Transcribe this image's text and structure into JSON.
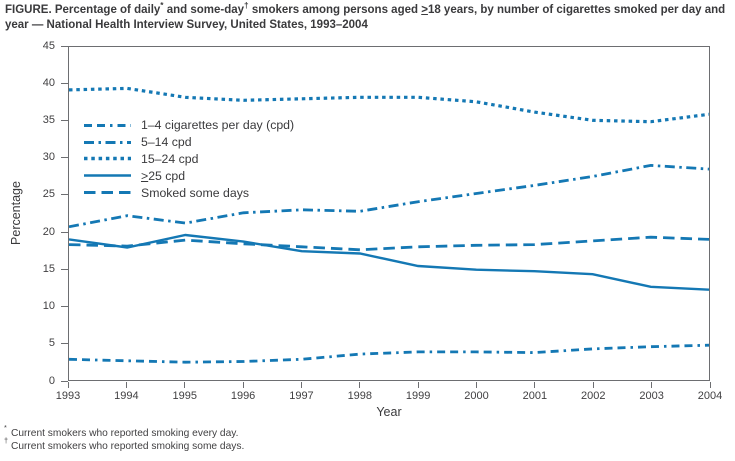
{
  "figure": {
    "title": {
      "part1": "FIGURE. Percentage of daily",
      "sup1": "*",
      "part2": " and some-day",
      "sup2": "†",
      "part3": " smokers among persons aged ",
      "geq": ">",
      "part4": "18 years, by number of cigarettes smoked per day and year — National Health Interview Survey, United States, 1993–2004"
    },
    "footnotes": [
      {
        "marker": "*",
        "text": "Current smokers who reported smoking every day."
      },
      {
        "marker": "†",
        "text": "Current smokers who reported smoking some days."
      }
    ]
  },
  "colors": {
    "line": "#1478b4",
    "axis": "#6d6e71",
    "text": "#3a3a3c"
  },
  "chart_data": {
    "type": "line",
    "title": "Percentage of daily and some-day smokers among persons aged ≥18 years, by number of cigarettes smoked per day and year, 1993–2004",
    "xlabel": "Year",
    "ylabel": "Percentage",
    "x": [
      1993,
      1994,
      1995,
      1996,
      1997,
      1998,
      1999,
      2000,
      2001,
      2002,
      2003,
      2004
    ],
    "ylim": [
      0,
      45
    ],
    "y_ticks": [
      0,
      5,
      10,
      15,
      20,
      25,
      30,
      35,
      40,
      45
    ],
    "grid": false,
    "legend_position": "upper-left inside plot",
    "series": [
      {
        "name": "1–4 cigarettes per day (cpd)",
        "style": "dash-dash-dot",
        "dash": "8 5 8 5 2.5 5",
        "width": 2.8,
        "values": [
          2.8,
          2.6,
          2.4,
          2.5,
          2.8,
          3.5,
          3.8,
          3.8,
          3.7,
          4.2,
          4.5,
          4.7
        ]
      },
      {
        "name": "5–14 cpd",
        "style": "dash-dot",
        "dash": "10 4.5 2.5 4.5",
        "width": 2.8,
        "values": [
          20.7,
          22.2,
          21.2,
          22.6,
          23.0,
          22.8,
          24.1,
          25.2,
          26.3,
          27.5,
          29.0,
          28.5
        ]
      },
      {
        "name": "15–24 cpd",
        "style": "dotted",
        "dash": "3.5 3.8",
        "width": 3.2,
        "values": [
          39.2,
          39.4,
          38.2,
          37.8,
          38.0,
          38.2,
          38.2,
          37.6,
          36.2,
          35.1,
          34.9,
          35.9
        ]
      },
      {
        "name": "≥25 cpd",
        "style": "solid",
        "dash": "",
        "width": 2.4,
        "values": [
          19.0,
          17.9,
          19.6,
          18.7,
          17.4,
          17.1,
          15.4,
          14.9,
          14.7,
          14.3,
          12.6,
          12.2
        ]
      },
      {
        "name": "Smoked some days",
        "style": "long-dash",
        "dash": "11.5 6",
        "width": 2.8,
        "values": [
          18.3,
          18.1,
          18.9,
          18.4,
          18.0,
          17.6,
          18.0,
          18.2,
          18.3,
          18.8,
          19.3,
          19.0
        ]
      }
    ]
  }
}
